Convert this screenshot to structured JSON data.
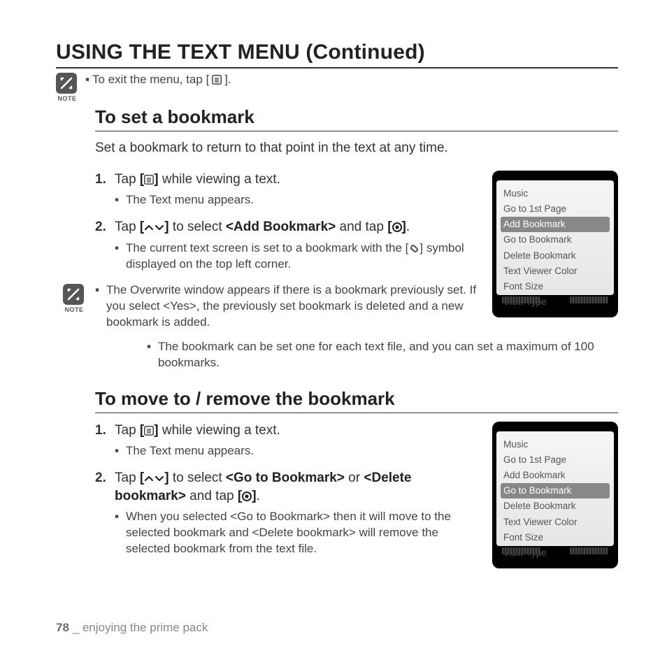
{
  "page_title": "USING THE TEXT MENU (Continued)",
  "note_label": "NOTE",
  "exit_pre": "To exit the menu, tap [",
  "exit_post": "].",
  "section1": {
    "heading": "To set a bookmark",
    "intro": "Set a bookmark to return to that point in the text at any time.",
    "step1_num": "1.",
    "step1_a": "Tap ",
    "step1_b": " while viewing a text.",
    "step1_sub": "The Text menu appears.",
    "step2_num": "2.",
    "step2_a": "Tap ",
    "step2_b": " to select ",
    "step2_cmd": "<Add Bookmark>",
    "step2_c": " and tap ",
    "step2_d": ".",
    "step2_sub1_a": "The current text screen is set to a bookmark with the [",
    "step2_sub1_b": "] symbol displayed on the top left corner.",
    "note1": "The Overwrite window appears if there is a bookmark previously set. If you select <Yes>, the previously set bookmark is deleted and a new bookmark is added.",
    "note2": "The bookmark can be set one for each text file, and you can set a maximum of 100 bookmarks."
  },
  "section2": {
    "heading": "To move to / remove the bookmark",
    "step1_num": "1.",
    "step1_a": "Tap ",
    "step1_b": " while viewing a text.",
    "step1_sub": "The Text menu appears.",
    "step2_num": "2.",
    "step2_a": "Tap ",
    "step2_b": " to select ",
    "step2_cmd1": "<Go to Bookmark>",
    "step2_c": " or ",
    "step2_cmd2": "<Delete bookmark>",
    "step2_d": " and tap ",
    "step2_e": ".",
    "step2_sub": "When you selected <Go to Bookmark> then it will move to the selected bookmark and <Delete bookmark> will remove the selected bookmark from the text file."
  },
  "menu_items": [
    "Music",
    "Go to 1st Page",
    "Add Bookmark",
    "Go to Bookmark",
    "Delete Bookmark",
    "Text Viewer Color",
    "Font Size",
    "View Type"
  ],
  "menu1_highlight": 2,
  "menu2_highlight": 3,
  "footer_page": "78",
  "footer_sep": " _ ",
  "footer_text": "enjoying the prime pack",
  "colors": {
    "text": "#333333",
    "heading": "#222222",
    "muted": "#888888",
    "device_bg": "#000000",
    "screen_bg": "#efefef",
    "highlight_bg": "#888888",
    "highlight_fg": "#ffffff"
  }
}
